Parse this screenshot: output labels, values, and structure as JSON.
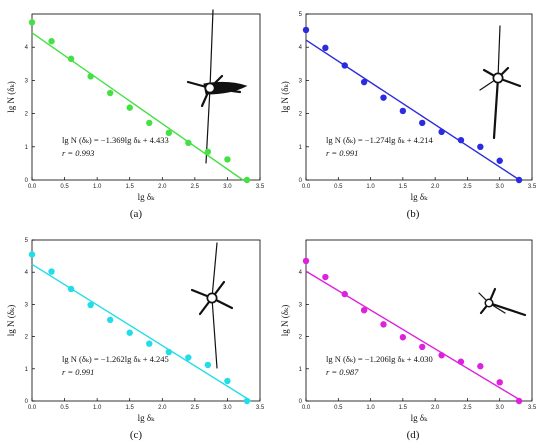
{
  "chart_data": [
    {
      "type": "scatter",
      "panel_label": "(a)",
      "xlabel": "lg δₖ",
      "ylabel": "lg N (δₖ)",
      "xlim": [
        0,
        3.5
      ],
      "ylim": [
        0,
        5
      ],
      "xticks": [
        "0.0",
        "0.5",
        "1.0",
        "1.5",
        "2.0",
        "2.5",
        "3.0",
        "3.5"
      ],
      "yticks": [
        "0",
        "1",
        "2",
        "3",
        "4"
      ],
      "color": "#44e044",
      "equation": "lg N (δₖ) = −1.369lg δₖ + 4.433",
      "r_text": "r = 0.993",
      "fit": {
        "slope": -1.369,
        "intercept": 4.433
      },
      "series": [
        {
          "x": [
            0.0,
            0.3,
            0.6,
            0.9,
            1.2,
            1.5,
            1.8,
            2.1,
            2.4,
            2.7,
            3.0,
            3.3
          ],
          "y": [
            4.75,
            4.18,
            3.65,
            3.12,
            2.62,
            2.18,
            1.72,
            1.42,
            1.12,
            0.85,
            0.62,
            0.0
          ]
        }
      ]
    },
    {
      "type": "scatter",
      "panel_label": "(b)",
      "xlabel": "lg δₖ",
      "ylabel": "lg N (δₖ)",
      "xlim": [
        0,
        3.5
      ],
      "ylim": [
        0,
        5
      ],
      "xticks": [
        "0.0",
        "0.5",
        "1.0",
        "1.5",
        "2.0",
        "2.5",
        "3.0",
        "3.5"
      ],
      "yticks": [
        "0",
        "1",
        "2",
        "3",
        "4",
        "5"
      ],
      "color": "#2b2bdf",
      "equation": "lg N (δₖ) = −1.274lg δₖ + 4.214",
      "r_text": "r = 0.991",
      "fit": {
        "slope": -1.274,
        "intercept": 4.214
      },
      "series": [
        {
          "x": [
            0.0,
            0.3,
            0.6,
            0.9,
            1.2,
            1.5,
            1.8,
            2.1,
            2.4,
            2.7,
            3.0,
            3.3
          ],
          "y": [
            4.52,
            3.98,
            3.45,
            2.95,
            2.48,
            2.08,
            1.72,
            1.45,
            1.2,
            1.0,
            0.58,
            0.0
          ]
        }
      ]
    },
    {
      "type": "scatter",
      "panel_label": "(c)",
      "xlabel": "lg δₖ",
      "ylabel": "lg N (δₖ)",
      "xlim": [
        0,
        3.5
      ],
      "ylim": [
        0,
        5
      ],
      "xticks": [
        "0.0",
        "0.5",
        "1.0",
        "1.5",
        "2.0",
        "2.5",
        "3.0",
        "3.5"
      ],
      "yticks": [
        "0",
        "1",
        "2",
        "3",
        "4",
        "5"
      ],
      "color": "#22dde8",
      "equation": "lg N (δₖ) = −1.262lg δₖ + 4.245",
      "r_text": "r = 0.991",
      "fit": {
        "slope": -1.262,
        "intercept": 4.245
      },
      "series": [
        {
          "x": [
            0.0,
            0.3,
            0.6,
            0.9,
            1.2,
            1.5,
            1.8,
            2.1,
            2.4,
            2.7,
            3.0,
            3.3
          ],
          "y": [
            4.55,
            4.02,
            3.48,
            2.98,
            2.52,
            2.12,
            1.78,
            1.52,
            1.35,
            1.12,
            0.62,
            0.0
          ]
        }
      ]
    },
    {
      "type": "scatter",
      "panel_label": "(d)",
      "xlabel": "lg δₖ",
      "ylabel": "lg N (δₖ)",
      "xlim": [
        0,
        3.5
      ],
      "ylim": [
        0,
        5
      ],
      "xticks": [
        "0.0",
        "0.5",
        "1.0",
        "1.5",
        "2.0",
        "2.5",
        "3.0",
        "3.5"
      ],
      "yticks": [
        "0",
        "1",
        "2",
        "3",
        "4"
      ],
      "color": "#dd22dd",
      "equation": "lg N (δₖ) = −1.206lg δₖ + 4.030",
      "r_text": "r = 0.987",
      "fit": {
        "slope": -1.206,
        "intercept": 4.03
      },
      "series": [
        {
          "x": [
            0.0,
            0.3,
            0.6,
            0.9,
            1.2,
            1.5,
            1.8,
            2.1,
            2.4,
            2.7,
            3.0,
            3.3
          ],
          "y": [
            4.35,
            3.85,
            3.32,
            2.82,
            2.38,
            1.98,
            1.68,
            1.42,
            1.22,
            1.08,
            0.58,
            0.0
          ]
        }
      ]
    }
  ]
}
